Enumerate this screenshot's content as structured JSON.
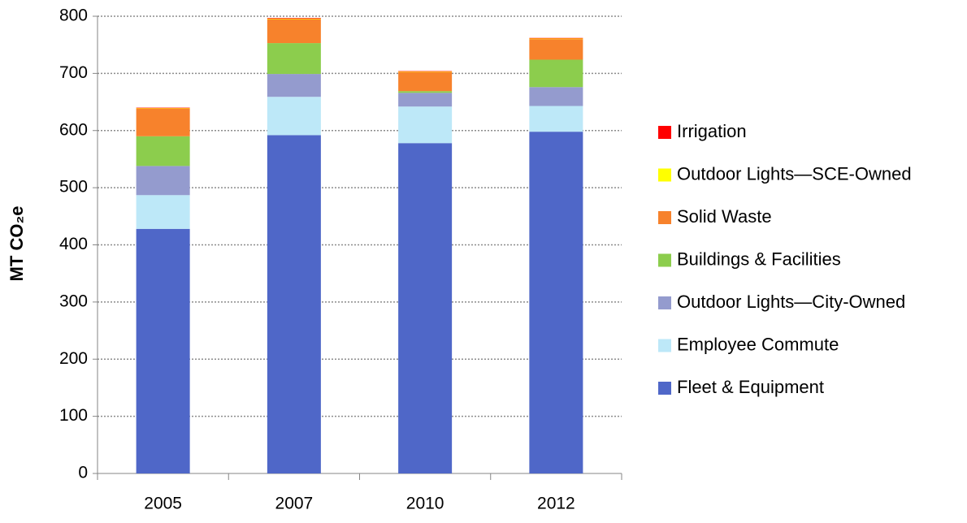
{
  "chart_data": {
    "type": "stacked_bar",
    "y_label": "MT CO₂e",
    "categories": [
      "2005",
      "2007",
      "2010",
      "2012"
    ],
    "series": [
      {
        "name": "Fleet & Equipment",
        "color": "#4f67c8",
        "values": [
          428,
          592,
          578,
          598
        ]
      },
      {
        "name": "Employee Commute",
        "color": "#bde8f8",
        "values": [
          59,
          67,
          64,
          45
        ]
      },
      {
        "name": "Outdoor Lights—City-Owned",
        "color": "#949bce",
        "values": [
          51,
          40,
          24,
          33
        ]
      },
      {
        "name": "Buildings & Facilities",
        "color": "#8ccd4d",
        "values": [
          52,
          54,
          3,
          48
        ]
      },
      {
        "name": "Solid Waste",
        "color": "#f7822c",
        "values": [
          48,
          42,
          33,
          36
        ]
      },
      {
        "name": "Outdoor Lights—SCE-Owned",
        "color": "#ffff00",
        "values": [
          1,
          1,
          1,
          1
        ]
      },
      {
        "name": "Irrigation",
        "color": "#ff0000",
        "values": [
          1,
          1,
          1,
          1
        ]
      }
    ],
    "ylim": [
      0,
      800
    ],
    "yticks": [
      0,
      100,
      200,
      300,
      400,
      500,
      600,
      700,
      800
    ],
    "grid": true
  }
}
